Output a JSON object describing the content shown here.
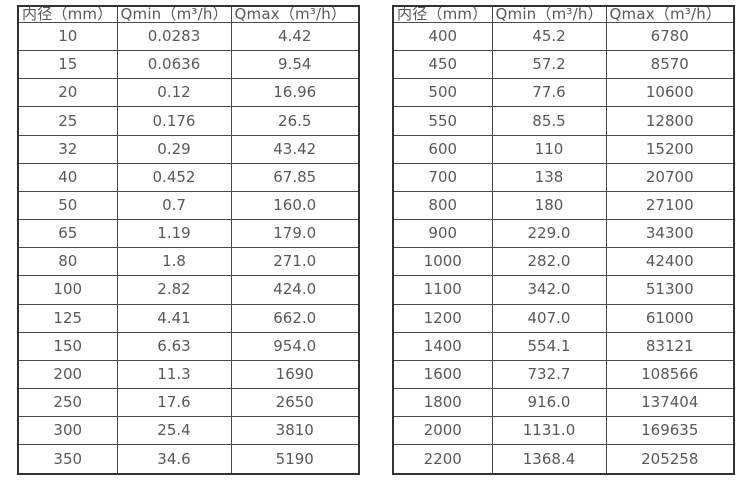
{
  "page": {
    "background": "#ffffff",
    "border_color_outer": "#333333",
    "border_color_inner": "#4a4a4a",
    "text_color": "#595959"
  },
  "tables": [
    {
      "name": "flow-spec-table-small-diameters",
      "headers": [
        "内径（mm）",
        "Qmin（m³/h）",
        "Qmax（m³/h）"
      ],
      "rows": [
        [
          "10",
          "0.0283",
          "4.42"
        ],
        [
          "15",
          "0.0636",
          "9.54"
        ],
        [
          "20",
          "0.12",
          "16.96"
        ],
        [
          "25",
          "0.176",
          "26.5"
        ],
        [
          "32",
          "0.29",
          "43.42"
        ],
        [
          "40",
          "0.452",
          "67.85"
        ],
        [
          "50",
          "0.7",
          "160.0"
        ],
        [
          "65",
          "1.19",
          "179.0"
        ],
        [
          "80",
          "1.8",
          "271.0"
        ],
        [
          "100",
          "2.82",
          "424.0"
        ],
        [
          "125",
          "4.41",
          "662.0"
        ],
        [
          "150",
          "6.63",
          "954.0"
        ],
        [
          "200",
          "11.3",
          "1690"
        ],
        [
          "250",
          "17.6",
          "2650"
        ],
        [
          "300",
          "25.4",
          "3810"
        ],
        [
          "350",
          "34.6",
          "5190"
        ]
      ]
    },
    {
      "name": "flow-spec-table-large-diameters",
      "headers": [
        "内径（mm）",
        "Qmin（m³/h）",
        "Qmax（m³/h）"
      ],
      "rows": [
        [
          "400",
          "45.2",
          "6780"
        ],
        [
          "450",
          "57.2",
          "8570"
        ],
        [
          "500",
          "77.6",
          "10600"
        ],
        [
          "550",
          "85.5",
          "12800"
        ],
        [
          "600",
          "110",
          "15200"
        ],
        [
          "700",
          "138",
          "20700"
        ],
        [
          "800",
          "180",
          "27100"
        ],
        [
          "900",
          "229.0",
          "34300"
        ],
        [
          "1000",
          "282.0",
          "42400"
        ],
        [
          "1100",
          "342.0",
          "51300"
        ],
        [
          "1200",
          "407.0",
          "61000"
        ],
        [
          "1400",
          "554.1",
          "83121"
        ],
        [
          "1600",
          "732.7",
          "108566"
        ],
        [
          "1800",
          "916.0",
          "137404"
        ],
        [
          "2000",
          "1131.0",
          "169635"
        ],
        [
          "2200",
          "1368.4",
          "205258"
        ]
      ]
    }
  ]
}
